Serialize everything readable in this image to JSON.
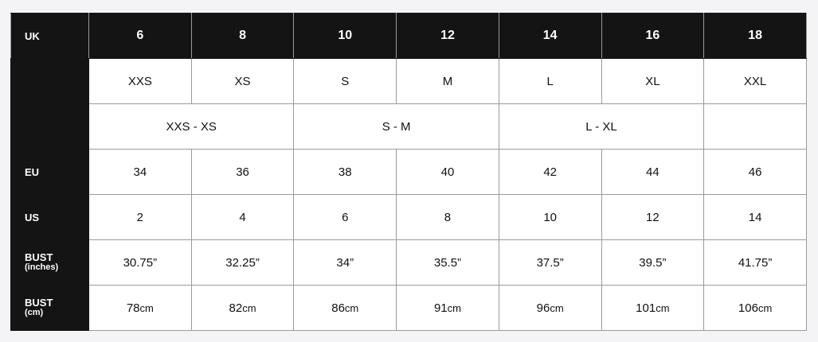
{
  "header": {
    "label": "UK",
    "sizes": [
      "6",
      "8",
      "10",
      "12",
      "14",
      "16",
      "18"
    ]
  },
  "letter_row": {
    "label": "",
    "values": [
      "XXS",
      "XS",
      "S",
      "M",
      "L",
      "XL",
      "XXL"
    ]
  },
  "range_row": {
    "label": "",
    "values": [
      "XXS - XS",
      "S - M",
      "L - XL",
      ""
    ]
  },
  "eu_row": {
    "label": "EU",
    "values": [
      "34",
      "36",
      "38",
      "40",
      "42",
      "44",
      "46"
    ]
  },
  "us_row": {
    "label": "US",
    "values": [
      "2",
      "4",
      "6",
      "8",
      "10",
      "12",
      "14"
    ]
  },
  "bust_in_row": {
    "label": "BUST",
    "sublabel": "(inches)",
    "values": [
      "30.75”",
      "32.25”",
      "34”",
      "35.5”",
      "37.5”",
      "39.5”",
      "41.75”"
    ]
  },
  "bust_cm_row": {
    "label": "BUST",
    "sublabel": "(cm)",
    "values": [
      "78",
      "82",
      "86",
      "91",
      "96",
      "101",
      "106"
    ],
    "unit": "cm"
  }
}
